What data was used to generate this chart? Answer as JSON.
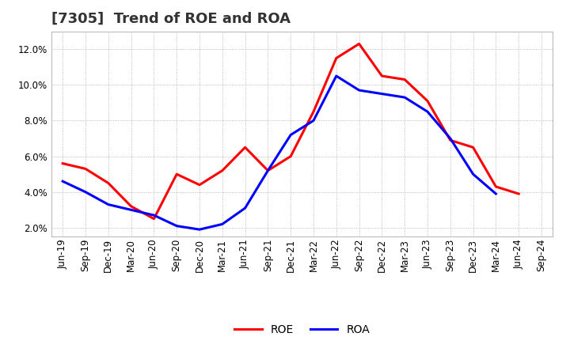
{
  "title": "[7305]  Trend of ROE and ROA",
  "labels": [
    "Jun-19",
    "Sep-19",
    "Dec-19",
    "Mar-20",
    "Jun-20",
    "Sep-20",
    "Dec-20",
    "Mar-21",
    "Jun-21",
    "Sep-21",
    "Dec-21",
    "Mar-22",
    "Jun-22",
    "Sep-22",
    "Dec-22",
    "Mar-23",
    "Jun-23",
    "Sep-23",
    "Dec-23",
    "Mar-24",
    "Jun-24",
    "Sep-24"
  ],
  "ROE": [
    5.6,
    5.3,
    4.5,
    3.2,
    2.5,
    5.0,
    4.4,
    5.2,
    6.5,
    5.2,
    6.0,
    8.5,
    11.5,
    12.3,
    10.5,
    10.3,
    9.1,
    6.9,
    6.5,
    4.3,
    3.9,
    null
  ],
  "ROA": [
    4.6,
    4.0,
    3.3,
    3.0,
    2.7,
    2.1,
    1.9,
    2.2,
    3.1,
    5.2,
    7.2,
    8.0,
    10.5,
    9.7,
    9.5,
    9.3,
    8.5,
    7.0,
    5.0,
    3.9,
    null,
    null
  ],
  "roe_color": "#FF0000",
  "roa_color": "#0000FF",
  "background_color": "#FFFFFF",
  "plot_bg_color": "#FFFFFF",
  "ylim": [
    1.5,
    13.0
  ],
  "yticks": [
    2.0,
    4.0,
    6.0,
    8.0,
    10.0,
    12.0
  ],
  "grid_color": "#AAAAAA",
  "line_width": 2.2,
  "title_fontsize": 13,
  "tick_fontsize": 8.5,
  "legend_fontsize": 10
}
